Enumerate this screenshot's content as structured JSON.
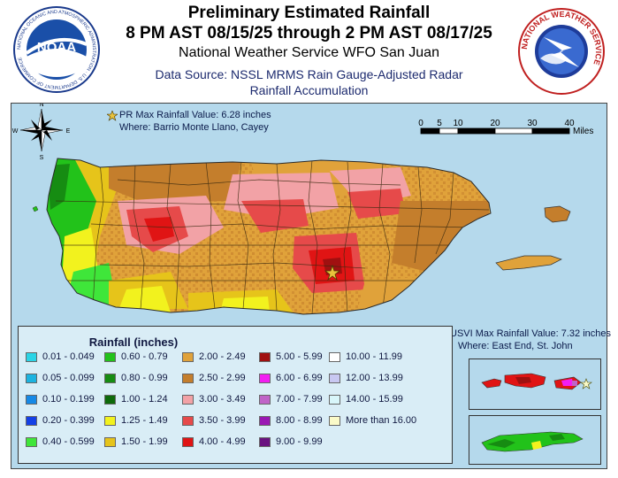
{
  "header": {
    "title_line1": "Preliminary Estimated Rainfall",
    "title_line2": "8 PM AST 08/15/25 through 2 PM AST 08/17/25",
    "office": "National Weather Service WFO San Juan",
    "source_line1": "Data Source: NSSL MRMS Rain Gauge-Adjusted Radar",
    "source_line2": "Rainfall Accumulation"
  },
  "logos": {
    "noaa_center": "NOAA",
    "noaa_ring": "NATIONAL OCEANIC AND ATMOSPHERIC ADMINISTRATION · U.S. DEPARTMENT OF COMMERCE",
    "nws_ring": "NATIONAL WEATHER SERVICE"
  },
  "compass": {
    "n": "N",
    "s": "S",
    "e": "E",
    "w": "W"
  },
  "pr_max": {
    "label": "PR Max Rainfall Value: 6.28 inches",
    "where": "Where: Barrio Monte Llano, Cayey"
  },
  "usvi_max": {
    "label": "USVI Max Rainfall Value: 7.32 inches",
    "where": "Where: East End, St. John"
  },
  "scale_bar": {
    "ticks": [
      "0",
      "5",
      "10",
      "20",
      "30",
      "40"
    ],
    "tick_values": [
      0,
      5,
      10,
      20,
      30,
      40
    ],
    "unit": "Miles"
  },
  "legend": {
    "title": "Rainfall (inches)",
    "items": [
      {
        "label": "0.01 - 0.049",
        "color": "#2ad4e6"
      },
      {
        "label": "0.05 - 0.099",
        "color": "#1cb3e0"
      },
      {
        "label": "0.10 - 0.199",
        "color": "#1689e6"
      },
      {
        "label": "0.20 - 0.399",
        "color": "#1440e6"
      },
      {
        "label": "0.40 - 0.599",
        "color": "#3fe63a"
      },
      {
        "label": "0.60 - 0.79",
        "color": "#22c21a"
      },
      {
        "label": "0.80 - 0.99",
        "color": "#168c12"
      },
      {
        "label": "1.00 - 1.24",
        "color": "#0e6a0a"
      },
      {
        "label": "1.25 - 1.49",
        "color": "#f2f21e"
      },
      {
        "label": "1.50 - 1.99",
        "color": "#e6c41a"
      },
      {
        "label": "2.00 - 2.49",
        "color": "#e0a23a"
      },
      {
        "label": "2.50 - 2.99",
        "color": "#c47e2c"
      },
      {
        "label": "3.00 - 3.49",
        "color": "#f2a2a6"
      },
      {
        "label": "3.50 - 3.99",
        "color": "#e64a4a"
      },
      {
        "label": "4.00 - 4.99",
        "color": "#e01414"
      },
      {
        "label": "5.00 - 5.99",
        "color": "#a01010"
      },
      {
        "label": "6.00 - 6.99",
        "color": "#f21ef2"
      },
      {
        "label": "7.00 - 7.99",
        "color": "#c064c8"
      },
      {
        "label": "8.00 - 8.99",
        "color": "#9a18b4"
      },
      {
        "label": "9.00 - 9.99",
        "color": "#6a1280"
      },
      {
        "label": "10.00 - 11.99",
        "color": "#ffffff"
      },
      {
        "label": "12.00 - 13.99",
        "color": "#c8c8f2"
      },
      {
        "label": "14.00 - 15.99",
        "color": "#d8f6fa"
      },
      {
        "label": "More than 16.00",
        "color": "#fafac8"
      }
    ]
  },
  "colors": {
    "water": "#b5d9ec",
    "legend_bg": "#d9edf6",
    "text_blue": "#1c2a6e",
    "star": "#e8c23c"
  }
}
